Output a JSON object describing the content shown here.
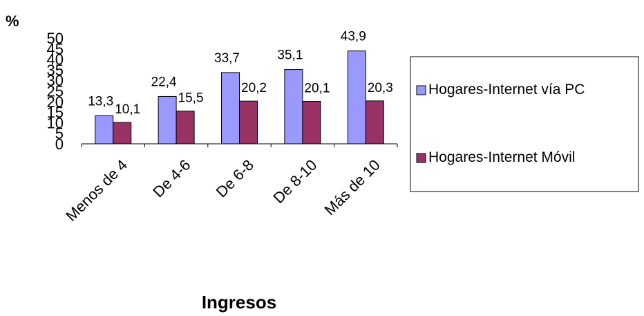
{
  "chart_data": {
    "type": "bar",
    "ylabel": "%",
    "xlabel": "Ingresos",
    "categories": [
      "Menos de 4",
      "De 4-6",
      "De 6-8",
      "De 8-10",
      "Más de 10"
    ],
    "ylim": [
      0,
      50
    ],
    "yticks": [
      "0",
      "5",
      "10",
      "15",
      "20",
      "25",
      "30",
      "35",
      "40",
      "45",
      "50"
    ],
    "series": [
      {
        "name": "Hogares-Internet vía PC",
        "values": [
          13.3,
          22.4,
          33.7,
          35.1,
          43.9
        ],
        "labels": [
          "13,3",
          "22,4",
          "33,7",
          "35,1",
          "43,9"
        ],
        "color": "#9999FF"
      },
      {
        "name": "Hogares-Internet Móvil",
        "values": [
          10.1,
          15.5,
          20.2,
          20.1,
          20.3
        ],
        "labels": [
          "10,1",
          "15,5",
          "20,2",
          "20,1",
          "20,3"
        ],
        "color": "#993366"
      }
    ],
    "grid": false,
    "legend_position": "right"
  }
}
